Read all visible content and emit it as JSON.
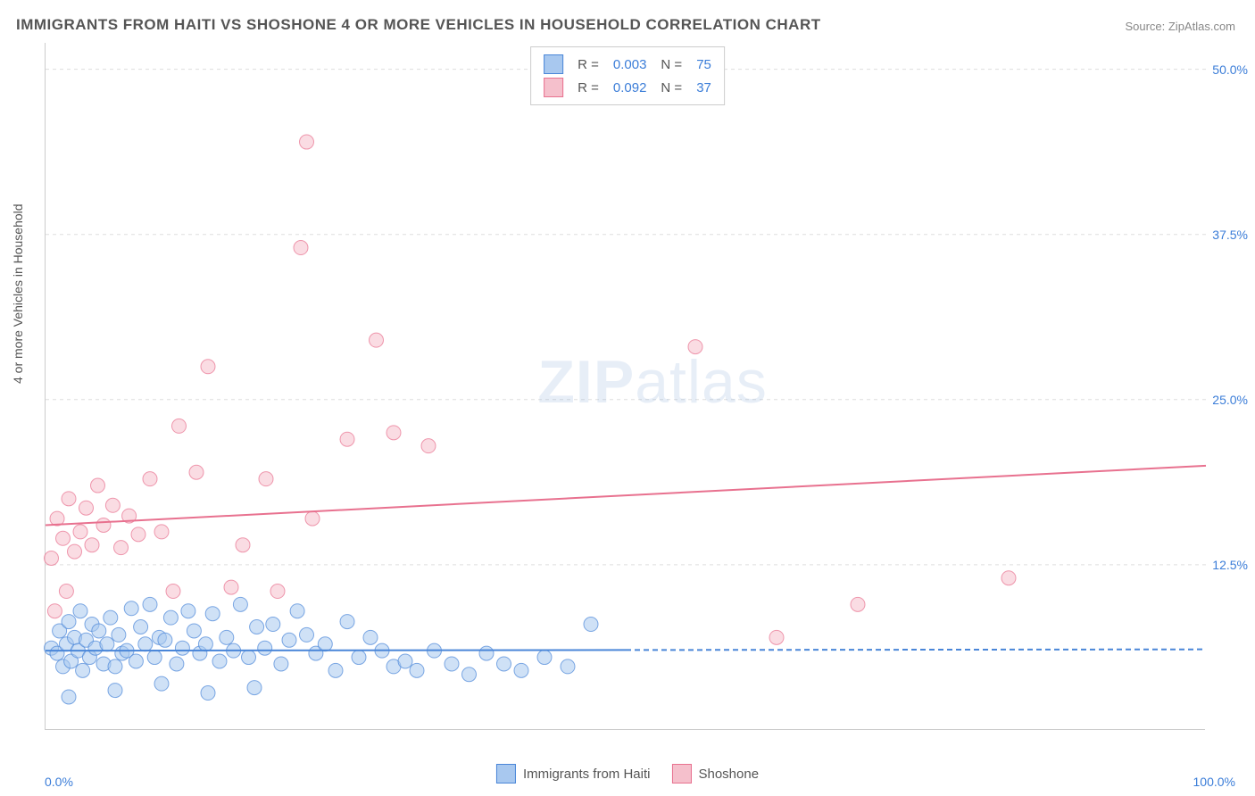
{
  "title": "IMMIGRANTS FROM HAITI VS SHOSHONE 4 OR MORE VEHICLES IN HOUSEHOLD CORRELATION CHART",
  "source": "Source: ZipAtlas.com",
  "y_axis_label": "4 or more Vehicles in Household",
  "watermark_bold": "ZIP",
  "watermark_light": "atlas",
  "chart": {
    "type": "scatter",
    "xlim": [
      0,
      100
    ],
    "ylim": [
      0,
      52
    ],
    "x_tick_labels": [
      "0.0%",
      "100.0%"
    ],
    "y_ticks": [
      12.5,
      25.0,
      37.5,
      50.0
    ],
    "y_tick_labels": [
      "12.5%",
      "25.0%",
      "37.5%",
      "50.0%"
    ],
    "background_color": "#ffffff",
    "grid_color": "#dddddd",
    "axis_color": "#cccccc",
    "tick_label_color": "#3b7dd8",
    "marker_radius": 8,
    "marker_opacity": 0.55,
    "line_width": 2,
    "dash_pattern": "6 4",
    "series": [
      {
        "name": "Immigrants from Haiti",
        "color_fill": "#a8c8ef",
        "color_stroke": "#4a86d8",
        "R": "0.003",
        "N": "75",
        "trend": {
          "y_at_x0": 6.0,
          "y_at_x50": 6.05,
          "solid_until_x": 50
        },
        "points": [
          [
            0.5,
            6.2
          ],
          [
            1,
            5.8
          ],
          [
            1.2,
            7.5
          ],
          [
            1.5,
            4.8
          ],
          [
            1.8,
            6.5
          ],
          [
            2,
            8.2
          ],
          [
            2.2,
            5.2
          ],
          [
            2.5,
            7.0
          ],
          [
            2.8,
            6.0
          ],
          [
            3,
            9.0
          ],
          [
            3.2,
            4.5
          ],
          [
            3.5,
            6.8
          ],
          [
            3.8,
            5.5
          ],
          [
            4,
            8.0
          ],
          [
            4.3,
            6.2
          ],
          [
            4.6,
            7.5
          ],
          [
            5,
            5.0
          ],
          [
            5.3,
            6.5
          ],
          [
            5.6,
            8.5
          ],
          [
            6,
            4.8
          ],
          [
            6.3,
            7.2
          ],
          [
            6.6,
            5.8
          ],
          [
            7,
            6.0
          ],
          [
            7.4,
            9.2
          ],
          [
            7.8,
            5.2
          ],
          [
            8.2,
            7.8
          ],
          [
            8.6,
            6.5
          ],
          [
            9,
            9.5
          ],
          [
            9.4,
            5.5
          ],
          [
            9.8,
            7.0
          ],
          [
            10.3,
            6.8
          ],
          [
            10.8,
            8.5
          ],
          [
            11.3,
            5.0
          ],
          [
            11.8,
            6.2
          ],
          [
            12.3,
            9.0
          ],
          [
            12.8,
            7.5
          ],
          [
            13.3,
            5.8
          ],
          [
            13.8,
            6.5
          ],
          [
            14.4,
            8.8
          ],
          [
            15,
            5.2
          ],
          [
            15.6,
            7.0
          ],
          [
            16.2,
            6.0
          ],
          [
            16.8,
            9.5
          ],
          [
            17.5,
            5.5
          ],
          [
            18.2,
            7.8
          ],
          [
            18.9,
            6.2
          ],
          [
            19.6,
            8.0
          ],
          [
            20.3,
            5.0
          ],
          [
            21,
            6.8
          ],
          [
            21.7,
            9.0
          ],
          [
            22.5,
            7.2
          ],
          [
            23.3,
            5.8
          ],
          [
            24.1,
            6.5
          ],
          [
            25,
            4.5
          ],
          [
            26,
            8.2
          ],
          [
            27,
            5.5
          ],
          [
            28,
            7.0
          ],
          [
            29,
            6.0
          ],
          [
            30,
            4.8
          ],
          [
            31,
            5.2
          ],
          [
            32,
            4.5
          ],
          [
            33.5,
            6.0
          ],
          [
            35,
            5.0
          ],
          [
            36.5,
            4.2
          ],
          [
            38,
            5.8
          ],
          [
            39.5,
            5.0
          ],
          [
            41,
            4.5
          ],
          [
            43,
            5.5
          ],
          [
            45,
            4.8
          ],
          [
            47,
            8.0
          ],
          [
            2,
            2.5
          ],
          [
            6,
            3.0
          ],
          [
            10,
            3.5
          ],
          [
            14,
            2.8
          ],
          [
            18,
            3.2
          ]
        ]
      },
      {
        "name": "Shoshone",
        "color_fill": "#f5c0cc",
        "color_stroke": "#e8718f",
        "R": "0.092",
        "N": "37",
        "trend": {
          "y_at_x0": 15.5,
          "y_at_x100": 20.0,
          "solid_until_x": 100
        },
        "points": [
          [
            0.5,
            13.0
          ],
          [
            1,
            16.0
          ],
          [
            1.5,
            14.5
          ],
          [
            2,
            17.5
          ],
          [
            2.5,
            13.5
          ],
          [
            3,
            15.0
          ],
          [
            3.5,
            16.8
          ],
          [
            4,
            14.0
          ],
          [
            4.5,
            18.5
          ],
          [
            5,
            15.5
          ],
          [
            5.8,
            17.0
          ],
          [
            6.5,
            13.8
          ],
          [
            7.2,
            16.2
          ],
          [
            8,
            14.8
          ],
          [
            9,
            19.0
          ],
          [
            10,
            15.0
          ],
          [
            11,
            10.5
          ],
          [
            11.5,
            23.0
          ],
          [
            13,
            19.5
          ],
          [
            14,
            27.5
          ],
          [
            16,
            10.8
          ],
          [
            17,
            14.0
          ],
          [
            19,
            19.0
          ],
          [
            20,
            10.5
          ],
          [
            22,
            36.5
          ],
          [
            22.5,
            44.5
          ],
          [
            23,
            16.0
          ],
          [
            26,
            22.0
          ],
          [
            28.5,
            29.5
          ],
          [
            30,
            22.5
          ],
          [
            33,
            21.5
          ],
          [
            56,
            29.0
          ],
          [
            63,
            7.0
          ],
          [
            70,
            9.5
          ],
          [
            83,
            11.5
          ],
          [
            0.8,
            9.0
          ],
          [
            1.8,
            10.5
          ]
        ]
      }
    ]
  },
  "legend_bottom": [
    {
      "label": "Immigrants from Haiti",
      "fill": "#a8c8ef",
      "stroke": "#4a86d8"
    },
    {
      "label": "Shoshone",
      "fill": "#f5c0cc",
      "stroke": "#e8718f"
    }
  ]
}
